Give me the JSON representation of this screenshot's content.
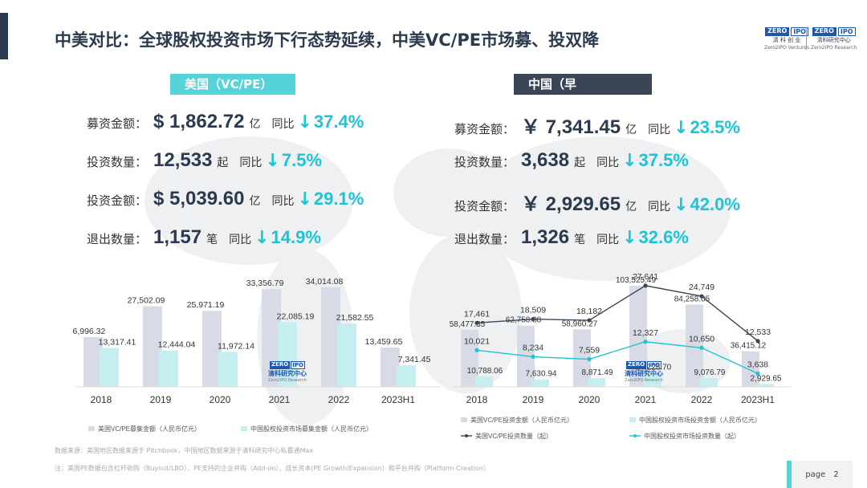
{
  "header": {
    "title": "中美对比：全球股权投资市场下行态势延续，中美VC/PE市场募、投双降"
  },
  "logos": [
    {
      "top_left": "ZERO",
      "top_right": "IPO",
      "name": "清 科 创 业",
      "sub": "Zero2IPO Ventures"
    },
    {
      "top_left": "ZERO",
      "top_right": "IPO",
      "name": "清科研究中心",
      "sub": "Zero2IPO Research"
    }
  ],
  "watermark": {
    "top_left": "ZERO",
    "top_right": "IPO",
    "name": "清科研究中心",
    "sub": "Zero2IPO Research"
  },
  "us": {
    "tag": "美国（VC/PE）",
    "metrics": [
      {
        "label": "募资金额：",
        "prefix": "$",
        "value": "1,862.72",
        "unit": "亿",
        "yoy": "同比",
        "arrow": "↓",
        "pct": "37.4%"
      },
      {
        "label": "投资数量：",
        "prefix": "",
        "value": "12,533",
        "unit": "起",
        "yoy": "同比",
        "arrow": "↓",
        "pct": "7.5%"
      },
      {
        "label": "投资金额：",
        "prefix": "$",
        "value": "5,039.60",
        "unit": "亿",
        "yoy": "同比",
        "arrow": "↓",
        "pct": "29.1%"
      },
      {
        "label": "退出数量：",
        "prefix": "",
        "value": "1,157",
        "unit": "笔",
        "yoy": "同比",
        "arrow": "↓",
        "pct": "14.9%"
      }
    ]
  },
  "cn": {
    "tag": "中国（早期/VC/PE）",
    "metrics": [
      {
        "label": "募资金额：",
        "prefix": "￥",
        "value": "7,341.45",
        "unit": "亿",
        "yoy": "同比",
        "arrow": "↓",
        "pct": "23.5%"
      },
      {
        "label": "投资数量：",
        "prefix": "",
        "value": "3,638",
        "unit": "起",
        "yoy": "同比",
        "arrow": "↓",
        "pct": "37.5%"
      },
      {
        "label": "投资金额：",
        "prefix": "￥",
        "value": "2,929.65",
        "unit": "亿",
        "yoy": "同比",
        "arrow": "↓",
        "pct": "42.0%"
      },
      {
        "label": "退出数量：",
        "prefix": "",
        "value": "1,326",
        "unit": "笔",
        "yoy": "同比",
        "arrow": "↓",
        "pct": "32.6%"
      }
    ]
  },
  "chart_data": [
    {
      "type": "bar",
      "categories": [
        "2018",
        "2019",
        "2020",
        "2021",
        "2022",
        "2023H1"
      ],
      "series": [
        {
          "name": "美国VC/PE募集金额（人民币亿元）",
          "values": [
            16996.32,
            27502.09,
            25971.19,
            33356.79,
            34014.08,
            13459.65
          ],
          "labels": [
            "16,996.32",
            "27,502.09",
            "25,971.19",
            "33,356.79",
            "34,014.08",
            "13,459.65"
          ],
          "color": "#d8dbe6"
        },
        {
          "name": "中国股权投资市场募集金额（人民币亿元）",
          "values": [
            13317.41,
            12444.04,
            11972.14,
            22085.19,
            21582.55,
            7341.45
          ],
          "labels": [
            "13,317.41",
            "12,444.04",
            "11,972.14",
            "22,085.19",
            "21,582.55",
            "7,341.45"
          ],
          "color": "#c4eef0"
        }
      ],
      "ylim": [
        0,
        40000
      ]
    },
    {
      "type": "bar+line",
      "categories": [
        "2018",
        "2019",
        "2020",
        "2021",
        "2022",
        "2023H1"
      ],
      "bar_series": [
        {
          "name": "美国VC/PE投资金额（人民币亿元）",
          "values": [
            58477.35,
            62758.88,
            58960.27,
            103525.49,
            84258.05,
            36415.12
          ],
          "labels": [
            "58,477.35",
            "62,758.88",
            "58,960.27",
            "103,525.49",
            "84,258.05",
            "36,415.12"
          ],
          "color": "#d8dbe6"
        },
        {
          "name": "中国股权投资市场投资金额（人民币亿元）",
          "values": [
            10788.06,
            7630.94,
            8871.49,
            14228.7,
            9076.79,
            2929.65
          ],
          "labels": [
            "10,788.06",
            "7,630.94",
            "8,871.49",
            "14,228.70",
            "9,076.79",
            "2,929.65"
          ],
          "color": "#c4eef0"
        }
      ],
      "line_series": [
        {
          "name": "美国VC/PE投资数量（起）",
          "values": [
            17461,
            18509,
            18182,
            27641,
            24749,
            12533
          ],
          "labels": [
            "17,461",
            "18,509",
            "18,182",
            "27,641",
            "24,749",
            "12,533"
          ],
          "color": "#3a4656"
        },
        {
          "name": "中国股权投资市场投资数量（起）",
          "values": [
            10021,
            8234,
            7559,
            12327,
            10650,
            3638
          ],
          "labels": [
            "10,021",
            "8,234",
            "7,559",
            "12,327",
            "10,650",
            "3,638"
          ],
          "color": "#1cc4d4"
        }
      ],
      "ylim_bar": [
        0,
        120000
      ],
      "ylim_line": [
        0,
        32000
      ]
    }
  ],
  "footnotes": {
    "source": "数据来源：美国地区数据来源于 Pitchbook，中国地区数据来源于清科研究中心私募通Max",
    "note": "注：美国PE数据包含杠杆收购（Buyout/LBO）、PE支持的企业并购（Add-on）、成长资本(PE Growth/Expansion）和平台并购（Platform Creation）"
  },
  "page": {
    "label": "page",
    "number": "2"
  }
}
